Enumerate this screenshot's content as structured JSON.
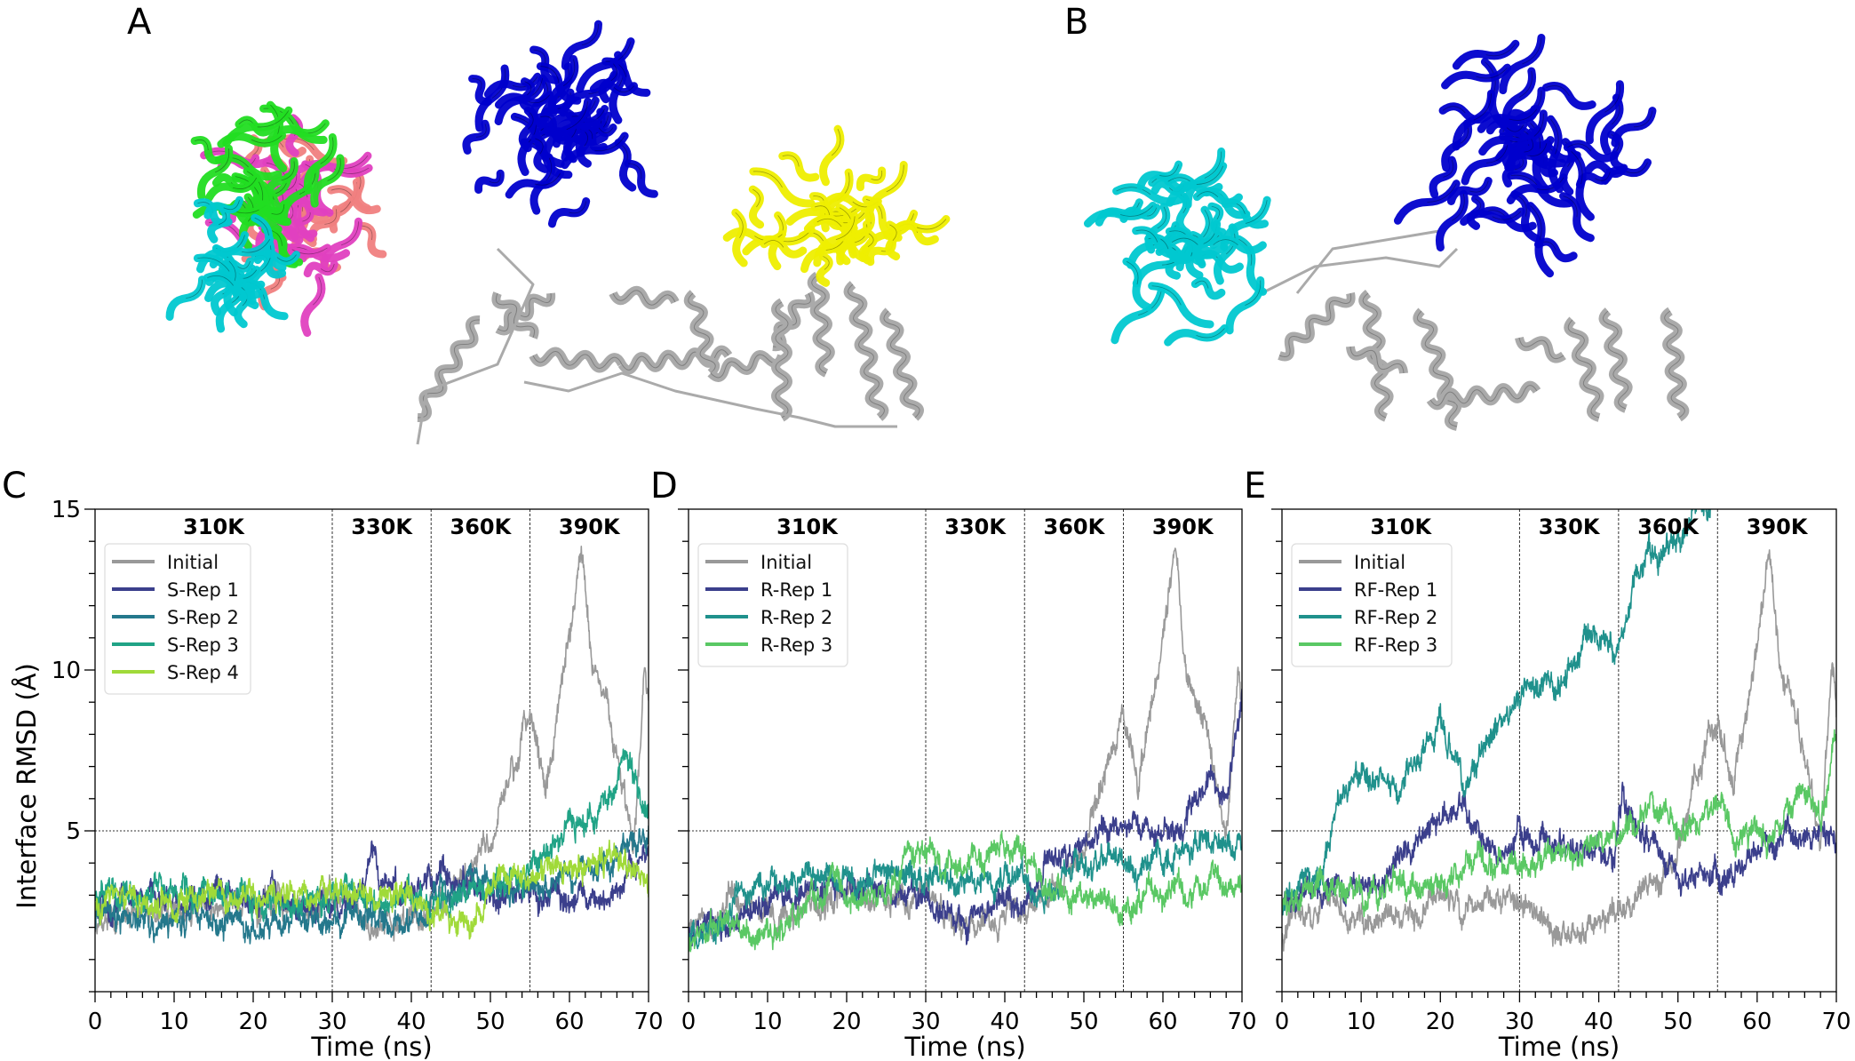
{
  "panel_labels": {
    "a": "A",
    "b": "B",
    "c": "C",
    "d": "D",
    "e": "E"
  },
  "structures": {
    "a": {
      "colors": {
        "antibody_cluster": [
          "#00c8d0",
          "#22dd22",
          "#e040c0",
          "#f08080"
        ],
        "bound_fab": "#0000cc",
        "second_fab": "#eeee00",
        "antigen": "#aaaaaa"
      }
    },
    "b": {
      "colors": {
        "fab_cyan": "#00c8d0",
        "fab_blue": "#0000cc",
        "antigen": "#aaaaaa"
      }
    }
  },
  "chart_data": [
    {
      "panel": "C",
      "type": "line",
      "xlabel": "Time (ns)",
      "ylabel": "Interface RMSD (Å)",
      "xlim": [
        0,
        70
      ],
      "ylim": [
        0,
        15
      ],
      "xticks": [
        0,
        10,
        20,
        30,
        40,
        50,
        60,
        70
      ],
      "yticks": [
        5,
        10,
        15
      ],
      "show_yticklabels": true,
      "temperature_boundaries": [
        30,
        42.5,
        55
      ],
      "temperature_labels": [
        "310K",
        "330K",
        "360K",
        "390K"
      ],
      "reference_line_y": 5,
      "legend_position": "upper-left",
      "series": [
        {
          "name": "Initial",
          "color": "#999999",
          "x": [
            0,
            5,
            10,
            15,
            20,
            25,
            30,
            35,
            40,
            45,
            50,
            52,
            55,
            57,
            60,
            61.5,
            63,
            65,
            67,
            68,
            69.5,
            70
          ],
          "y": [
            2.0,
            2.8,
            2.3,
            2.6,
            3.0,
            2.8,
            3.0,
            2.0,
            2.2,
            2.8,
            4.5,
            6.5,
            8.5,
            6.5,
            11,
            13.8,
            10,
            8.5,
            6,
            4.5,
            10,
            9
          ]
        },
        {
          "name": "S-Rep 1",
          "color": "#3b3f8c",
          "x": [
            0,
            10,
            20,
            30,
            34,
            35,
            36,
            40,
            44,
            50,
            55,
            60,
            65,
            70
          ],
          "y": [
            2.8,
            2.9,
            3.0,
            2.8,
            3.0,
            4.7,
            3.2,
            2.8,
            3.8,
            3.0,
            3.0,
            2.8,
            3.0,
            4.5
          ]
        },
        {
          "name": "S-Rep 2",
          "color": "#24788c",
          "x": [
            0,
            10,
            20,
            30,
            40,
            45,
            50,
            55,
            60,
            65,
            70
          ],
          "y": [
            2.3,
            2.2,
            2.2,
            2.2,
            2.2,
            3.5,
            3.5,
            3.2,
            3.5,
            4.0,
            5.0
          ]
        },
        {
          "name": "S-Rep 3",
          "color": "#20a386",
          "x": [
            0,
            10,
            20,
            30,
            40,
            45,
            50,
            55,
            60,
            65,
            67,
            70
          ],
          "y": [
            3.0,
            3.2,
            2.8,
            3.0,
            2.8,
            3.0,
            3.2,
            3.8,
            5.0,
            6.0,
            7.5,
            5.8
          ]
        },
        {
          "name": "S-Rep 4",
          "color": "#a0da39",
          "x": [
            0,
            10,
            20,
            30,
            40,
            47,
            50,
            55,
            60,
            65,
            70
          ],
          "y": [
            2.8,
            2.8,
            3.0,
            3.0,
            2.8,
            2.0,
            3.2,
            3.5,
            3.8,
            4.0,
            3.3
          ]
        }
      ]
    },
    {
      "panel": "D",
      "type": "line",
      "xlabel": "Time (ns)",
      "ylabel": "",
      "xlim": [
        0,
        70
      ],
      "ylim": [
        0,
        15
      ],
      "xticks": [
        0,
        10,
        20,
        30,
        40,
        50,
        60,
        70
      ],
      "yticks": [
        5,
        10,
        15
      ],
      "show_yticklabels": false,
      "temperature_boundaries": [
        30,
        42.5,
        55
      ],
      "temperature_labels": [
        "310K",
        "330K",
        "360K",
        "390K"
      ],
      "reference_line_y": 5,
      "legend_position": "upper-left",
      "series": [
        {
          "name": "Initial",
          "color": "#999999",
          "x": [
            0,
            5,
            10,
            15,
            20,
            25,
            30,
            35,
            40,
            45,
            50,
            52,
            55,
            57,
            60,
            61.5,
            63,
            65,
            67,
            68,
            69.5,
            70
          ],
          "y": [
            2.0,
            2.8,
            2.3,
            2.6,
            3.0,
            2.8,
            3.0,
            2.0,
            2.2,
            2.8,
            4.5,
            6.5,
            8.5,
            6.5,
            11,
            13.8,
            10,
            8.5,
            6,
            4.5,
            10,
            9
          ]
        },
        {
          "name": "R-Rep 1",
          "color": "#3b3f8c",
          "x": [
            0,
            10,
            20,
            30,
            33,
            40,
            42,
            45,
            50,
            52,
            55,
            60,
            63,
            66,
            68,
            70
          ],
          "y": [
            1.8,
            2.8,
            3.2,
            3.0,
            2.2,
            2.6,
            2.6,
            4.0,
            4.5,
            5.0,
            5.0,
            4.8,
            5.5,
            6.5,
            6.0,
            9.0
          ]
        },
        {
          "name": "R-Rep 2",
          "color": "#1f918c",
          "x": [
            0,
            10,
            15,
            20,
            26,
            30,
            35,
            40,
            45,
            50,
            55,
            60,
            65,
            70
          ],
          "y": [
            1.7,
            3.3,
            3.5,
            3.4,
            4.0,
            3.5,
            3.2,
            3.5,
            3.2,
            4.0,
            4.0,
            4.0,
            4.5,
            4.7
          ]
        },
        {
          "name": "R-Rep 3",
          "color": "#5ac864",
          "x": [
            0,
            5,
            9,
            15,
            18,
            20,
            25,
            28,
            30,
            35,
            42,
            45,
            50,
            55,
            60,
            62,
            63,
            65,
            70
          ],
          "y": [
            1.4,
            2.0,
            1.7,
            2.6,
            3.5,
            3.0,
            3.0,
            4.3,
            4.5,
            3.5,
            4.5,
            3.3,
            3.0,
            2.6,
            3.0,
            3.5,
            2.8,
            3.3,
            3.1
          ]
        }
      ]
    },
    {
      "panel": "E",
      "type": "line",
      "xlabel": "Time (ns)",
      "ylabel": "",
      "xlim": [
        0,
        70
      ],
      "ylim": [
        0,
        15
      ],
      "xticks": [
        0,
        10,
        20,
        30,
        40,
        50,
        60,
        70
      ],
      "yticks": [
        5,
        10,
        15
      ],
      "show_yticklabels": false,
      "temperature_boundaries": [
        30,
        42.5,
        55
      ],
      "temperature_labels": [
        "310K",
        "330K",
        "360K",
        "390K"
      ],
      "reference_line_y": 5,
      "legend_position": "upper-left",
      "series": [
        {
          "name": "Initial",
          "color": "#999999",
          "x": [
            0,
            5,
            10,
            15,
            20,
            25,
            30,
            35,
            40,
            45,
            50,
            52,
            55,
            57,
            60,
            61.5,
            63,
            65,
            67,
            68,
            69.5,
            70
          ],
          "y": [
            2.0,
            2.8,
            2.3,
            2.6,
            3.0,
            2.8,
            3.0,
            2.0,
            2.2,
            2.8,
            4.5,
            6.5,
            8.5,
            6.5,
            11,
            13.8,
            10,
            8.5,
            6,
            4.5,
            10,
            9
          ]
        },
        {
          "name": "RF-Rep 1",
          "color": "#3b3f8c",
          "x": [
            0,
            5,
            10,
            15,
            20,
            22,
            25,
            28,
            30,
            35,
            40,
            42,
            43,
            45,
            47,
            50,
            55,
            60,
            65,
            70
          ],
          "y": [
            2.8,
            3.0,
            3.2,
            4.0,
            5.5,
            6.0,
            5.0,
            4.2,
            4.8,
            4.5,
            4.3,
            4.0,
            5.8,
            4.8,
            5.0,
            3.8,
            3.5,
            4.3,
            5.0,
            4.8
          ]
        },
        {
          "name": "RF-Rep 2",
          "color": "#1f918c",
          "x": [
            0,
            5,
            7,
            10,
            15,
            20,
            23,
            27,
            30,
            35,
            40,
            42,
            45,
            50,
            53,
            55
          ],
          "y": [
            3.0,
            3.5,
            5.5,
            6.8,
            6.5,
            8.2,
            6.5,
            8.2,
            9.3,
            9.8,
            11.3,
            10.5,
            13.3,
            13.8,
            15,
            15.5
          ]
        },
        {
          "name": "RF-Rep 3",
          "color": "#5ac864",
          "x": [
            0,
            5,
            10,
            15,
            20,
            25,
            28,
            30,
            35,
            40,
            42,
            45,
            48,
            50,
            55,
            57,
            60,
            63,
            65,
            68,
            70
          ],
          "y": [
            2.8,
            3.3,
            3.0,
            3.5,
            3.3,
            4.3,
            3.6,
            4.0,
            4.2,
            4.8,
            4.5,
            5.3,
            5.8,
            5.2,
            5.8,
            4.8,
            4.8,
            5.2,
            6.5,
            5.5,
            7.8
          ]
        }
      ]
    }
  ]
}
